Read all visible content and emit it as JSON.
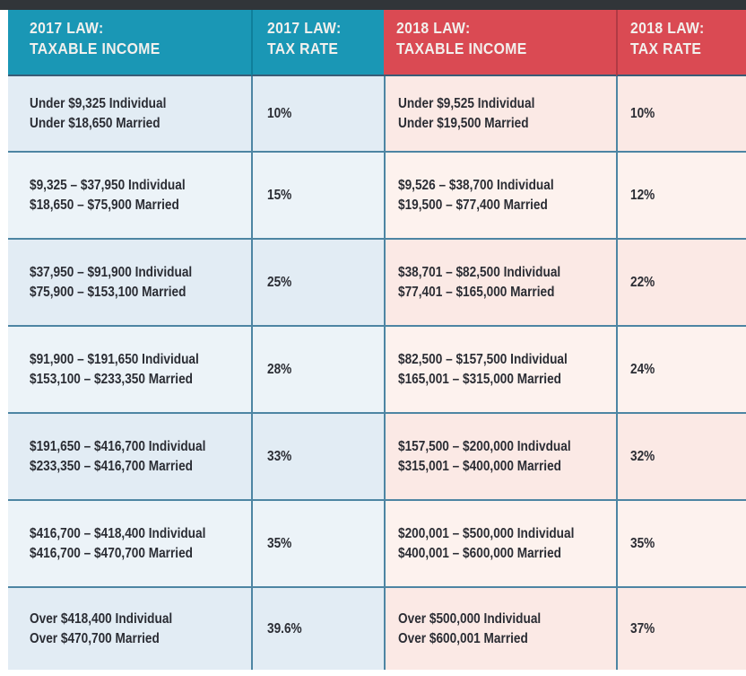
{
  "colors": {
    "top_bar": "#313539",
    "teal_header": "#1a97b5",
    "red_header": "#da4a53",
    "grid_line": "#4d85a3",
    "header_underline": "#3a5c76",
    "blue_cell_dark": "#e2ecf4",
    "blue_cell_light": "#ecf3f8",
    "pink_cell_dark": "#fbe9e5",
    "pink_cell_light": "#fdf2ee",
    "body_text": "#2b2d34",
    "header_text": "#f2f0ed"
  },
  "chart_data": {
    "type": "table",
    "title": "2017 Law vs 2018 Law tax brackets",
    "columns": [
      {
        "law": "2017 LAW:",
        "label": "TAXABLE INCOME",
        "theme": "blue"
      },
      {
        "law": "2017 LAW:",
        "label": "TAX RATE",
        "theme": "blue"
      },
      {
        "law": "2018 LAW:",
        "label": "TAXABLE INCOME",
        "theme": "red"
      },
      {
        "law": "2018 LAW:",
        "label": "TAX RATE",
        "theme": "red"
      }
    ],
    "rows": [
      {
        "y2017_income": [
          "Under $9,325 Individual",
          "Under $18,650 Married"
        ],
        "y2017_rate": "10%",
        "y2018_income": [
          "Under $9,525 Individual",
          "Under $19,500 Married"
        ],
        "y2018_rate": "10%"
      },
      {
        "y2017_income": [
          "$9,325 – $37,950 Individual",
          "$18,650 – $75,900 Married"
        ],
        "y2017_rate": "15%",
        "y2018_income": [
          "$9,526 – $38,700 Individual",
          "$19,500 – $77,400 Married"
        ],
        "y2018_rate": "12%"
      },
      {
        "y2017_income": [
          "$37,950 – $91,900 Individual",
          "$75,900 – $153,100 Married"
        ],
        "y2017_rate": "25%",
        "y2018_income": [
          "$38,701 – $82,500 Individual",
          "$77,401 – $165,000 Married"
        ],
        "y2018_rate": "22%"
      },
      {
        "y2017_income": [
          "$91,900 – $191,650 Individual",
          "$153,100 – $233,350 Married"
        ],
        "y2017_rate": "28%",
        "y2018_income": [
          "$82,500 – $157,500 Individual",
          "$165,001 – $315,000 Married"
        ],
        "y2018_rate": "24%"
      },
      {
        "y2017_income": [
          "$191,650 – $416,700 Individual",
          "$233,350 – $416,700 Married"
        ],
        "y2017_rate": "33%",
        "y2018_income": [
          "$157,500 – $200,000 Indivdual",
          "$315,001 – $400,000 Married"
        ],
        "y2018_rate": "32%"
      },
      {
        "y2017_income": [
          "$416,700 – $418,400 Individual",
          "$416,700 – $470,700 Married"
        ],
        "y2017_rate": "35%",
        "y2018_income": [
          "$200,001 – $500,000 Individual",
          "$400,001 – $600,000 Married"
        ],
        "y2018_rate": "35%"
      },
      {
        "y2017_income": [
          "Over $418,400 Individual",
          "Over $470,700 Married"
        ],
        "y2017_rate": "39.6%",
        "y2018_income": [
          "Over $500,000 Individual",
          "Over $600,001 Married"
        ],
        "y2018_rate": "37%"
      }
    ]
  }
}
